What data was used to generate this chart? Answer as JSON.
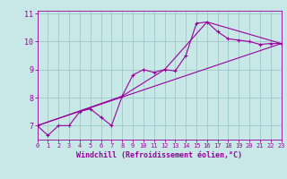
{
  "bg_color": "#c8e8e8",
  "line_color": "#990099",
  "grid_color": "#a0c8c8",
  "xlabel": "Windchill (Refroidissement éolien,°C)",
  "xlim": [
    0,
    23
  ],
  "ylim": [
    6.5,
    11.1
  ],
  "yticks": [
    7,
    8,
    9,
    10,
    11
  ],
  "xticks": [
    0,
    1,
    2,
    3,
    4,
    5,
    6,
    7,
    8,
    9,
    10,
    11,
    12,
    13,
    14,
    15,
    16,
    17,
    18,
    19,
    20,
    21,
    22,
    23
  ],
  "line1_x": [
    0,
    1,
    2,
    3,
    4,
    5,
    6,
    7,
    8,
    9,
    10,
    11,
    12,
    13,
    14,
    15,
    16,
    17,
    18,
    19,
    20,
    21,
    22,
    23
  ],
  "line1_y": [
    7.0,
    6.65,
    7.0,
    7.0,
    7.5,
    7.6,
    7.3,
    7.0,
    8.05,
    8.8,
    9.0,
    8.9,
    9.0,
    8.95,
    9.5,
    10.65,
    10.7,
    10.35,
    10.1,
    10.05,
    10.0,
    9.9,
    9.93,
    9.93
  ],
  "line2_x": [
    0,
    23
  ],
  "line2_y": [
    7.0,
    9.93
  ],
  "line3_x": [
    0,
    8,
    12,
    16,
    23
  ],
  "line3_y": [
    7.0,
    8.05,
    9.0,
    10.7,
    9.93
  ]
}
